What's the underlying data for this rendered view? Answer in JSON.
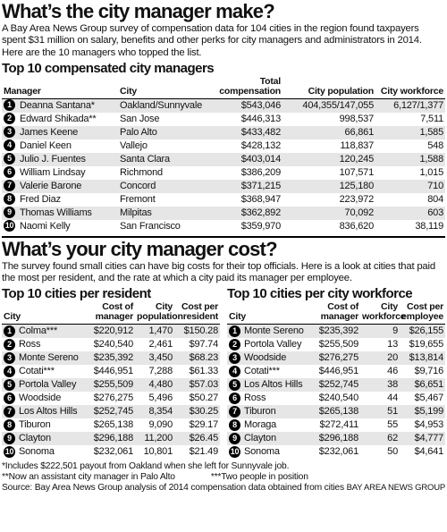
{
  "header": {
    "title": "What’s the city manager make?",
    "intro": "A Bay Area News Group survey of compensation data for 104 cities in the region found taxpayers spent $31 million on salary, benefits and other perks for city managers and administrators in 2014. Here are the 10 managers who topped the list."
  },
  "managers": {
    "title": "Top 10 compensated city managers",
    "headers": [
      "Manager",
      "City",
      "Total compensation",
      "City population",
      "City workforce"
    ],
    "rows": [
      [
        "1",
        "Deanna Santana*",
        "Oakland/Sunnyvale",
        "$543,046",
        "404,355/147,055",
        "6,127/1,377"
      ],
      [
        "2",
        "Edward Shikada**",
        "San Jose",
        "$446,313",
        "998,537",
        "7,511"
      ],
      [
        "3",
        "James Keene",
        "Palo Alto",
        "$433,482",
        "66,861",
        "1,585"
      ],
      [
        "4",
        "Daniel Keen",
        "Vallejo",
        "$428,132",
        "118,837",
        "548"
      ],
      [
        "5",
        "Julio J. Fuentes",
        "Santa Clara",
        "$403,014",
        "120,245",
        "1,588"
      ],
      [
        "6",
        "William Lindsay",
        "Richmond",
        "$386,209",
        "107,571",
        "1,015"
      ],
      [
        "7",
        "Valerie Barone",
        "Concord",
        "$371,215",
        "125,180",
        "710"
      ],
      [
        "8",
        "Fred Diaz",
        "Fremont",
        "$368,947",
        "223,972",
        "804"
      ],
      [
        "9",
        "Thomas Williams",
        "Milpitas",
        "$362,892",
        "70,092",
        "603"
      ],
      [
        "10",
        "Naomi Kelly",
        "San Francisco",
        "$359,970",
        "836,620",
        "38,119"
      ]
    ]
  },
  "cost": {
    "title": "What’s your city manager cost?",
    "intro": "The survey found small cities can have big costs for their top officials. Here is a look at cities that paid the most per resident, and the rate at which a city paid its manager per employee."
  },
  "per_resident": {
    "title": "Top 10 cities per resident",
    "headers": [
      "City",
      "Cost of manager",
      "City population",
      "Cost per resident"
    ],
    "rows": [
      [
        "1",
        "Colma***",
        "$220,912",
        "1,470",
        "$150.28"
      ],
      [
        "2",
        "Ross",
        "$240,540",
        "2,461",
        "$97.74"
      ],
      [
        "3",
        "Monte Sereno",
        "$235,392",
        "3,450",
        "$68.23"
      ],
      [
        "4",
        "Cotati***",
        "$446,951",
        "7,288",
        "$61.33"
      ],
      [
        "5",
        "Portola Valley",
        "$255,509",
        "4,480",
        "$57.03"
      ],
      [
        "6",
        "Woodside",
        "$276,275",
        "5,496",
        "$50.27"
      ],
      [
        "7",
        "Los Altos Hills",
        "$252,745",
        "8,354",
        "$30.25"
      ],
      [
        "8",
        "Tiburon",
        "$265,138",
        "9,090",
        "$29.17"
      ],
      [
        "9",
        "Clayton",
        "$296,188",
        "11,200",
        "$26.45"
      ],
      [
        "10",
        "Sonoma",
        "$232,061",
        "10,801",
        "$21.49"
      ]
    ]
  },
  "per_workforce": {
    "title": "Top 10 cities per city workforce",
    "headers": [
      "City",
      "Cost of manager",
      "City workforce",
      "Cost per employee"
    ],
    "rows": [
      [
        "1",
        "Monte Sereno",
        "$235,392",
        "9",
        "$26,155"
      ],
      [
        "2",
        "Portola Valley",
        "$255,509",
        "13",
        "$19,655"
      ],
      [
        "3",
        "Woodside",
        "$276,275",
        "20",
        "$13,814"
      ],
      [
        "4",
        "Cotati***",
        "$446,951",
        "46",
        "$9,716"
      ],
      [
        "5",
        "Los Altos Hills",
        "$252,745",
        "38",
        "$6,651"
      ],
      [
        "6",
        "Ross",
        "$240,540",
        "44",
        "$5,467"
      ],
      [
        "7",
        "Tiburon",
        "$265,138",
        "51",
        "$5,199"
      ],
      [
        "8",
        "Moraga",
        "$272,411",
        "55",
        "$4,953"
      ],
      [
        "9",
        "Clayton",
        "$296,188",
        "62",
        "$4,777"
      ],
      [
        "10",
        "Sonoma",
        "$232,061",
        "50",
        "$4,641"
      ]
    ]
  },
  "footer": {
    "notes": [
      "*Includes $222,501 payout from Oakland when she left for Sunnyvale job.",
      "**Now an assistant city manager in Palo Alto",
      "***Two people in position"
    ],
    "source": "Source: Bay Area News Group analysis of 2014 compensation data obtained from cities",
    "credit": "BAY AREA NEWS GROUP"
  }
}
